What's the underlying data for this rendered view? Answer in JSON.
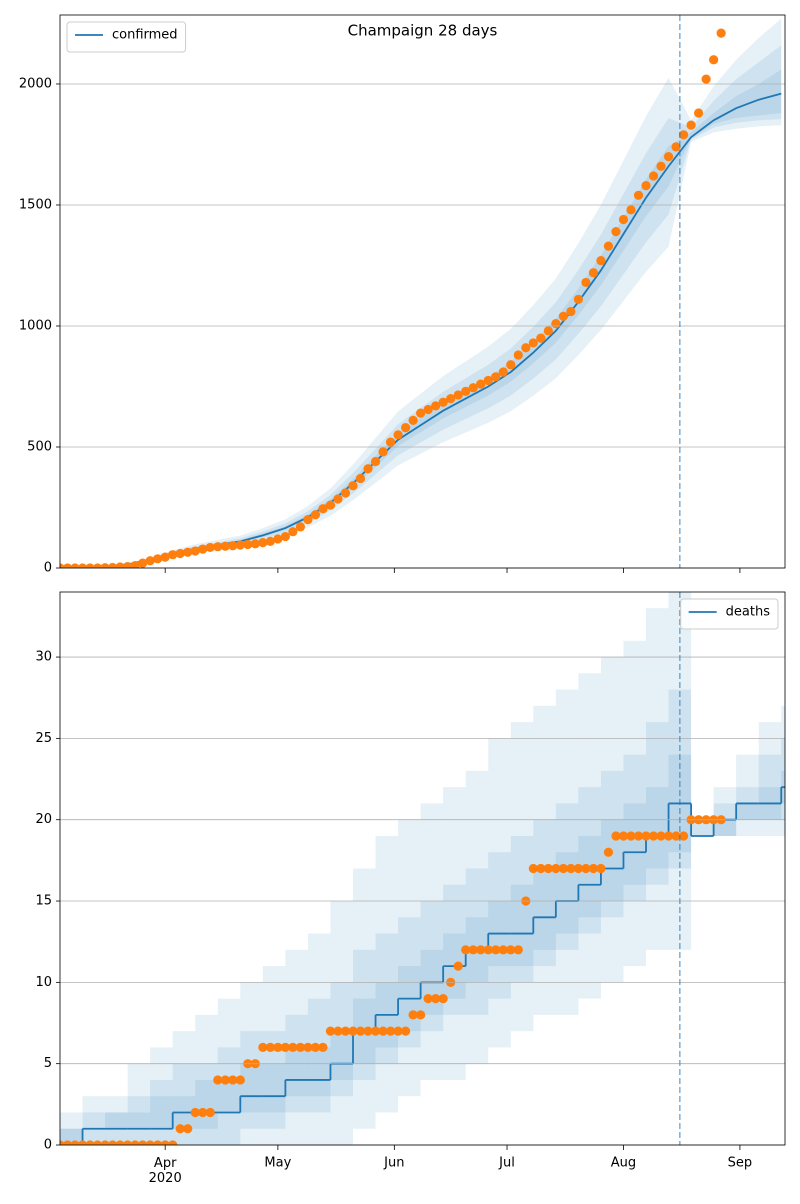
{
  "chart_data": [
    {
      "type": "line",
      "title": "Champaign 28 days",
      "x": [
        64,
        70,
        76,
        82,
        88,
        94,
        100,
        106,
        112,
        118,
        124,
        130,
        136,
        142,
        148,
        154,
        160,
        166,
        172,
        178,
        184,
        190,
        196,
        202,
        208,
        214,
        220,
        226,
        232,
        238,
        244,
        250,
        256
      ],
      "series": [
        {
          "name": "confirmed",
          "color": "#1f77b4",
          "values": [
            0,
            2,
            5,
            15,
            35,
            60,
            80,
            95,
            110,
            135,
            165,
            210,
            270,
            350,
            440,
            530,
            590,
            650,
            700,
            750,
            810,
            890,
            980,
            1100,
            1230,
            1380,
            1530,
            1660,
            1780,
            1850,
            1900,
            1935,
            1960
          ]
        }
      ],
      "bands": [
        {
          "lower": [
            0,
            2,
            4,
            12,
            28,
            48,
            64,
            76,
            88,
            108,
            132,
            168,
            216,
            280,
            352,
            424,
            472,
            520,
            560,
            600,
            648,
            712,
            784,
            880,
            984,
            1104,
            1224,
            1328,
            1760,
            1800,
            1815,
            1825,
            1830
          ],
          "upper": [
            0,
            2,
            6,
            18,
            43,
            73,
            98,
            116,
            134,
            165,
            201,
            256,
            329,
            427,
            537,
            647,
            720,
            793,
            854,
            915,
            988,
            1086,
            1196,
            1342,
            1501,
            1684,
            1867,
            2025,
            1850,
            1990,
            2100,
            2190,
            2270
          ]
        },
        {
          "lower": [
            0,
            2,
            4,
            13,
            31,
            53,
            70,
            84,
            97,
            119,
            145,
            185,
            238,
            308,
            387,
            466,
            519,
            572,
            616,
            660,
            713,
            783,
            862,
            968,
            1082,
            1214,
            1346,
            1461,
            1770,
            1820,
            1840,
            1850,
            1855
          ],
          "upper": [
            0,
            2,
            6,
            17,
            39,
            67,
            90,
            106,
            123,
            151,
            185,
            235,
            302,
            392,
            493,
            594,
            661,
            728,
            784,
            840,
            907,
            997,
            1098,
            1232,
            1378,
            1546,
            1714,
            1859,
            1820,
            1930,
            2020,
            2090,
            2160
          ]
        },
        {
          "lower": [
            0,
            2,
            5,
            14,
            33,
            57,
            76,
            90,
            105,
            128,
            157,
            200,
            257,
            333,
            418,
            504,
            561,
            618,
            665,
            713,
            770,
            846,
            931,
            1045,
            1169,
            1311,
            1454,
            1577,
            1775,
            1835,
            1860,
            1870,
            1880
          ],
          "upper": [
            0,
            2,
            5,
            16,
            37,
            63,
            84,
            100,
            116,
            142,
            173,
            221,
            284,
            368,
            462,
            557,
            620,
            683,
            735,
            788,
            851,
            935,
            1029,
            1155,
            1292,
            1449,
            1607,
            1743,
            1800,
            1880,
            1950,
            2000,
            2060
          ]
        }
      ],
      "band_color": "#1f77b4",
      "observed": {
        "color": "#ff7f0e",
        "x": [
          64,
          66,
          68,
          70,
          72,
          74,
          76,
          78,
          80,
          82,
          84,
          86,
          88,
          90,
          92,
          94,
          96,
          98,
          100,
          102,
          104,
          106,
          108,
          110,
          112,
          114,
          116,
          118,
          120,
          122,
          124,
          126,
          128,
          130,
          132,
          134,
          136,
          138,
          140,
          142,
          144,
          146,
          148,
          150,
          152,
          154,
          156,
          158,
          160,
          162,
          164,
          166,
          168,
          170,
          172,
          174,
          176,
          178,
          180,
          182,
          184,
          186,
          188,
          190,
          192,
          194,
          196,
          198,
          200,
          202,
          204,
          206,
          208,
          210,
          212,
          214,
          216,
          218,
          220,
          222,
          224,
          226,
          228,
          230,
          232,
          234,
          236,
          238,
          240
        ],
        "values": [
          0,
          0,
          0,
          0,
          0,
          0,
          1,
          2,
          4,
          6,
          10,
          20,
          30,
          38,
          45,
          55,
          60,
          65,
          70,
          78,
          85,
          88,
          90,
          92,
          95,
          97,
          100,
          105,
          110,
          120,
          130,
          150,
          170,
          200,
          220,
          245,
          260,
          285,
          310,
          340,
          370,
          410,
          440,
          480,
          520,
          550,
          580,
          610,
          640,
          655,
          670,
          685,
          700,
          715,
          730,
          745,
          760,
          775,
          790,
          810,
          840,
          880,
          910,
          930,
          950,
          980,
          1010,
          1040,
          1060,
          1110,
          1180,
          1220,
          1270,
          1330,
          1390,
          1440,
          1480,
          1540,
          1580,
          1620,
          1660,
          1700,
          1740,
          1790,
          1830,
          1880,
          2020,
          2100,
          2210
        ]
      },
      "vline": 229,
      "xlim": [
        64,
        257
      ],
      "ylim": [
        0,
        2285
      ],
      "yticks": [
        0,
        500,
        1000,
        1500,
        2000
      ],
      "grid": true,
      "legend": "upper left",
      "sharex": true
    },
    {
      "type": "line",
      "step": true,
      "x": [
        64,
        70,
        76,
        82,
        88,
        94,
        100,
        106,
        112,
        118,
        124,
        130,
        136,
        142,
        148,
        154,
        160,
        166,
        172,
        178,
        184,
        190,
        196,
        202,
        208,
        214,
        220,
        226,
        232,
        238,
        244,
        250,
        256
      ],
      "series": [
        {
          "name": "deaths",
          "color": "#1f77b4",
          "values": [
            0,
            1,
            1,
            1,
            1,
            2,
            2,
            2,
            3,
            3,
            4,
            4,
            5,
            7,
            8,
            9,
            10,
            11,
            12,
            13,
            13,
            14,
            15,
            16,
            17,
            18,
            19,
            21,
            19,
            20,
            21,
            21,
            22
          ]
        }
      ],
      "bands": [
        {
          "lower": [
            0,
            0,
            0,
            0,
            0,
            0,
            0,
            0,
            0,
            0,
            0,
            0,
            0,
            1,
            2,
            3,
            4,
            4,
            5,
            6,
            7,
            8,
            8,
            9,
            10,
            11,
            12,
            12,
            19,
            19,
            19,
            19,
            19
          ],
          "upper": [
            2,
            3,
            3,
            5,
            6,
            7,
            8,
            9,
            10,
            11,
            12,
            13,
            15,
            17,
            19,
            20,
            21,
            22,
            23,
            25,
            26,
            27,
            28,
            29,
            30,
            31,
            33,
            34,
            20,
            22,
            24,
            26,
            27
          ]
        },
        {
          "lower": [
            0,
            0,
            0,
            0,
            0,
            0,
            0,
            0,
            1,
            1,
            2,
            2,
            3,
            4,
            5,
            6,
            7,
            8,
            8,
            9,
            10,
            11,
            12,
            13,
            14,
            15,
            16,
            17,
            19,
            19,
            20,
            20,
            20
          ],
          "upper": [
            1,
            2,
            2,
            3,
            4,
            5,
            5,
            6,
            7,
            7,
            8,
            9,
            10,
            12,
            13,
            14,
            15,
            16,
            17,
            18,
            19,
            20,
            21,
            22,
            23,
            24,
            26,
            28,
            20,
            21,
            22,
            24,
            25
          ]
        },
        {
          "lower": [
            0,
            1,
            1,
            1,
            1,
            1,
            1,
            2,
            2,
            2,
            3,
            3,
            4,
            5,
            6,
            7,
            8,
            9,
            10,
            11,
            11,
            12,
            13,
            14,
            15,
            16,
            17,
            18,
            19,
            19,
            20,
            20,
            21
          ],
          "upper": [
            1,
            1,
            2,
            2,
            3,
            3,
            4,
            4,
            5,
            5,
            6,
            6,
            7,
            9,
            10,
            11,
            12,
            13,
            14,
            15,
            16,
            17,
            18,
            19,
            20,
            21,
            22,
            24,
            19,
            20,
            21,
            22,
            23
          ]
        }
      ],
      "band_color": "#1f77b4",
      "observed": {
        "color": "#ff7f0e",
        "x": [
          64,
          66,
          68,
          70,
          72,
          74,
          76,
          78,
          80,
          82,
          84,
          86,
          88,
          90,
          92,
          94,
          96,
          98,
          100,
          102,
          104,
          106,
          108,
          110,
          112,
          114,
          116,
          118,
          120,
          122,
          124,
          126,
          128,
          130,
          132,
          134,
          136,
          138,
          140,
          142,
          144,
          146,
          148,
          150,
          152,
          154,
          156,
          158,
          160,
          162,
          164,
          166,
          168,
          170,
          172,
          174,
          176,
          178,
          180,
          182,
          184,
          186,
          188,
          190,
          192,
          194,
          196,
          198,
          200,
          202,
          204,
          206,
          208,
          210,
          212,
          214,
          216,
          218,
          220,
          222,
          224,
          226,
          228,
          230,
          232,
          234,
          236,
          238,
          240
        ],
        "values": [
          0,
          0,
          0,
          0,
          0,
          0,
          0,
          0,
          0,
          0,
          0,
          0,
          0,
          0,
          0,
          0,
          1,
          1,
          2,
          2,
          2,
          4,
          4,
          4,
          4,
          5,
          5,
          6,
          6,
          6,
          6,
          6,
          6,
          6,
          6,
          6,
          7,
          7,
          7,
          7,
          7,
          7,
          7,
          7,
          7,
          7,
          7,
          8,
          8,
          9,
          9,
          9,
          10,
          11,
          12,
          12,
          12,
          12,
          12,
          12,
          12,
          12,
          15,
          17,
          17,
          17,
          17,
          17,
          17,
          17,
          17,
          17,
          17,
          18,
          19,
          19,
          19,
          19,
          19,
          19,
          19,
          19,
          19,
          19,
          20,
          20,
          20,
          20,
          20
        ]
      },
      "vline": 229,
      "xlim": [
        64,
        257
      ],
      "ylim": [
        0,
        34
      ],
      "yticks": [
        0,
        5,
        10,
        15,
        20,
        25,
        30
      ],
      "xticks": [
        {
          "value": 92,
          "label": "Apr\n2020"
        },
        {
          "value": 122,
          "label": "May"
        },
        {
          "value": 153,
          "label": "Jun"
        },
        {
          "value": 183,
          "label": "Jul"
        },
        {
          "value": 214,
          "label": "Aug"
        },
        {
          "value": 245,
          "label": "Sep"
        }
      ],
      "grid": true,
      "legend": "upper right"
    }
  ]
}
